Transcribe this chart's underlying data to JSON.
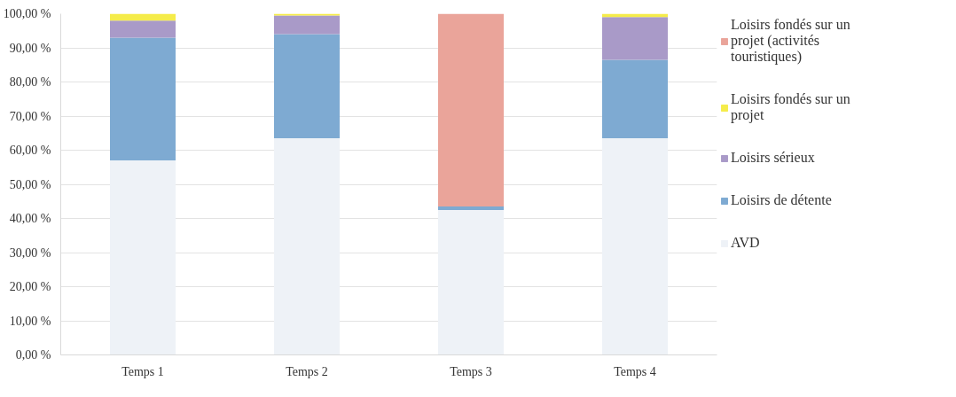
{
  "chart_data": {
    "type": "bar",
    "stacked": true,
    "categories": [
      "Temps 1",
      "Temps 2",
      "Temps 3",
      "Temps 4"
    ],
    "series": [
      {
        "name": "AVD",
        "color": "#eef2f7",
        "values": [
          57,
          63.5,
          42.5,
          63.5
        ]
      },
      {
        "name": "Loisirs de détente",
        "color": "#7eaad2",
        "values": [
          36,
          30.5,
          1,
          23
        ]
      },
      {
        "name": "Loisirs sérieux",
        "color": "#a99ac8",
        "values": [
          5,
          5.5,
          0,
          12.5
        ]
      },
      {
        "name": "Loisirs fondés sur un projet",
        "color": "#f5ec4a",
        "values": [
          2,
          0.5,
          0,
          1
        ]
      },
      {
        "name": "Loisirs fondés sur un projet (activités touristiques)",
        "color": "#eaa49a",
        "values": [
          0,
          0,
          56.5,
          0
        ]
      }
    ],
    "ylim": [
      0,
      100
    ],
    "yticks": [
      {
        "value": 0,
        "label": "0,00 %"
      },
      {
        "value": 10,
        "label": "10,00 %"
      },
      {
        "value": 20,
        "label": "20,00 %"
      },
      {
        "value": 30,
        "label": "30,00 %"
      },
      {
        "value": 40,
        "label": "40,00 %"
      },
      {
        "value": 50,
        "label": "50,00 %"
      },
      {
        "value": 60,
        "label": "60,00 %"
      },
      {
        "value": 70,
        "label": "70,00 %"
      },
      {
        "value": 80,
        "label": "80,00 %"
      },
      {
        "value": 90,
        "label": "90,00 %"
      },
      {
        "value": 100,
        "label": "100,00 %"
      }
    ],
    "grid": "y",
    "legend": "right"
  }
}
